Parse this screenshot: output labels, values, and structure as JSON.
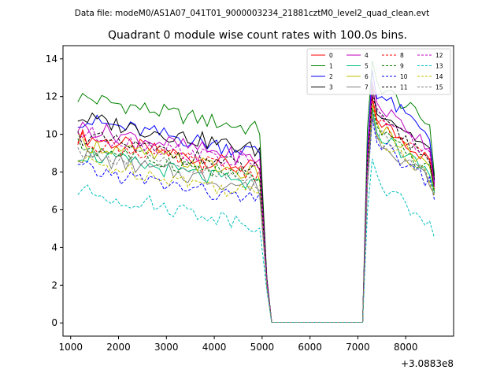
{
  "header_text": "Data file: modeM0/AS1A07_041T01_9000003234_21881cztM0_level2_quad_clean.evt",
  "chart_data": {
    "type": "line",
    "title": "Quadrant 0 module wise count rates with 100.0s bins.",
    "xlabel": "",
    "ylabel": "",
    "x_offset_label": "+3.0883e8",
    "xlim": [
      840,
      9000
    ],
    "ylim": [
      -0.7,
      14.7
    ],
    "x_ticks": [
      1000,
      2000,
      3000,
      4000,
      5000,
      6000,
      7000,
      8000
    ],
    "x_tick_labels": [
      "1000",
      "2000",
      "3000",
      "4000",
      "5000",
      "6000",
      "7000",
      "8000"
    ],
    "y_ticks": [
      0,
      2,
      4,
      6,
      8,
      10,
      12,
      14
    ],
    "y_tick_labels": [
      "0",
      "2",
      "4",
      "6",
      "8",
      "10",
      "12",
      "14"
    ],
    "grid": false,
    "legend_position": "top-right",
    "legend_columns": 4,
    "segments": [
      {
        "x_start": 1150,
        "x_end": 5000,
        "dx": 100
      },
      {
        "x_start": 5100,
        "x_end": 7100,
        "dx": 100
      },
      {
        "x_start": 7200,
        "x_end": 8600,
        "dx": 100
      }
    ],
    "series": [
      {
        "name": "0",
        "color": "#ff0000",
        "dash": false,
        "levels": [
          9.9,
          0.0,
          10.4
        ],
        "peak": 12.0,
        "end": 7.4,
        "off_low": [
          2.2,
          0.03
        ]
      },
      {
        "name": "1",
        "color": "#008000",
        "dash": false,
        "levels": [
          12.0,
          0.0,
          12.3
        ],
        "peak": 13.9,
        "end": 7.8,
        "off_low": [
          2.4,
          0.03
        ]
      },
      {
        "name": "2",
        "color": "#0000ff",
        "dash": false,
        "levels": [
          10.8,
          0.0,
          11.2
        ],
        "peak": 13.4,
        "end": 7.5,
        "off_low": [
          2.3,
          0.03
        ]
      },
      {
        "name": "3",
        "color": "#000000",
        "dash": false,
        "levels": [
          10.9,
          0.0,
          10.8
        ],
        "peak": 12.6,
        "end": 7.6,
        "off_low": [
          2.3,
          0.03
        ]
      },
      {
        "name": "4",
        "color": "#bf00bf",
        "dash": false,
        "levels": [
          10.4,
          0.0,
          10.9
        ],
        "peak": 12.8,
        "end": 7.3,
        "off_low": [
          2.2,
          0.03
        ]
      },
      {
        "name": "5",
        "color": "#00bf80",
        "dash": false,
        "levels": [
          9.0,
          0.0,
          9.7
        ],
        "peak": 11.3,
        "end": 6.9,
        "off_low": [
          2.0,
          0.03
        ]
      },
      {
        "name": "6",
        "color": "#bfbf00",
        "dash": false,
        "levels": [
          9.6,
          0.0,
          10.2
        ],
        "peak": 11.6,
        "end": 7.0,
        "off_low": [
          2.1,
          0.03
        ]
      },
      {
        "name": "7",
        "color": "#808080",
        "dash": false,
        "levels": [
          8.9,
          0.0,
          9.4
        ],
        "peak": 11.0,
        "end": 6.8,
        "off_low": [
          2.0,
          0.03
        ]
      },
      {
        "name": "8",
        "color": "#ff0000",
        "dash": true,
        "levels": [
          9.7,
          0.0,
          10.3
        ],
        "peak": 11.9,
        "end": 7.1,
        "off_low": [
          2.1,
          0.03
        ]
      },
      {
        "name": "9",
        "color": "#008000",
        "dash": true,
        "levels": [
          9.4,
          0.0,
          10.0
        ],
        "peak": 11.4,
        "end": 6.9,
        "off_low": [
          2.0,
          0.03
        ]
      },
      {
        "name": "10",
        "color": "#0000ff",
        "dash": true,
        "levels": [
          8.2,
          0.0,
          9.3
        ],
        "peak": 10.8,
        "end": 6.5,
        "off_low": [
          1.9,
          0.03
        ]
      },
      {
        "name": "11",
        "color": "#000000",
        "dash": true,
        "levels": [
          9.9,
          0.0,
          10.6
        ],
        "peak": 12.1,
        "end": 7.2,
        "off_low": [
          2.2,
          0.03
        ]
      },
      {
        "name": "12",
        "color": "#bf00bf",
        "dash": true,
        "levels": [
          10.1,
          0.0,
          10.5
        ],
        "peak": 12.3,
        "end": 7.2,
        "off_low": [
          2.2,
          0.03
        ]
      },
      {
        "name": "13",
        "color": "#00bfbf",
        "dash": true,
        "levels": [
          7.0,
          0.0,
          7.9
        ],
        "peak": 8.7,
        "end": 4.5,
        "off_low": [
          1.7,
          0.03
        ]
      },
      {
        "name": "14",
        "color": "#bfbf00",
        "dash": true,
        "levels": [
          8.6,
          0.0,
          9.5
        ],
        "peak": 11.1,
        "end": 6.7,
        "off_low": [
          1.9,
          0.03
        ]
      },
      {
        "name": "15",
        "color": "#808080",
        "dash": true,
        "levels": [
          9.2,
          0.0,
          9.8
        ],
        "peak": 11.2,
        "end": 6.8,
        "off_low": [
          2.0,
          0.03
        ]
      }
    ]
  }
}
